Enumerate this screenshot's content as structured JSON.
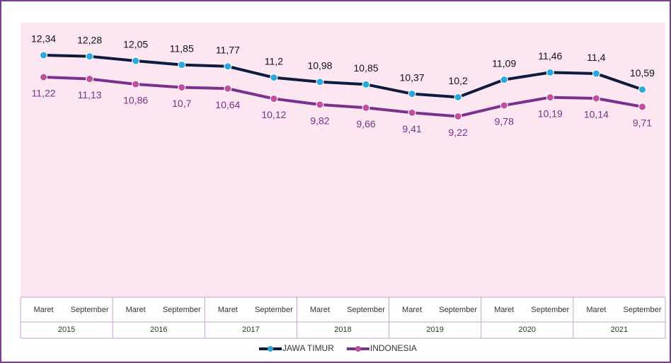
{
  "chart_data": {
    "type": "line",
    "categories": [
      "Maret",
      "September",
      "Maret",
      "September",
      "Maret",
      "September",
      "Maret",
      "September",
      "Maret",
      "September",
      "Maret",
      "September",
      "Maret",
      "September"
    ],
    "years": [
      "2015",
      "2016",
      "2017",
      "2018",
      "2019",
      "2020",
      "2021"
    ],
    "ylim": [
      0,
      14
    ],
    "legend": "bottom",
    "series": [
      {
        "name": "JAWA TIMUR",
        "color": "#0d1b3f",
        "marker_color": "#2aa8e0",
        "values": [
          12.34,
          12.28,
          12.05,
          11.85,
          11.77,
          11.2,
          10.98,
          10.85,
          10.37,
          10.2,
          11.09,
          11.46,
          11.4,
          10.59
        ],
        "value_labels": [
          "12,34",
          "12,28",
          "12,05",
          "11,85",
          "11,77",
          "11,2",
          "10,98",
          "10,85",
          "10,37",
          "10,2",
          "11,09",
          "11,46",
          "11,4",
          "10,59"
        ]
      },
      {
        "name": "INDONESIA",
        "color": "#7b2f8f",
        "marker_color": "#c04f9c",
        "values": [
          11.22,
          11.13,
          10.86,
          10.7,
          10.64,
          10.12,
          9.82,
          9.66,
          9.41,
          9.22,
          9.78,
          10.19,
          10.14,
          9.71
        ],
        "value_labels": [
          "11,22",
          "11,13",
          "10,86",
          "10,7",
          "10,64",
          "10,12",
          "9,82",
          "9,66",
          "9,41",
          "9,22",
          "9,78",
          "10,19",
          "10,14",
          "9,71"
        ]
      }
    ]
  }
}
